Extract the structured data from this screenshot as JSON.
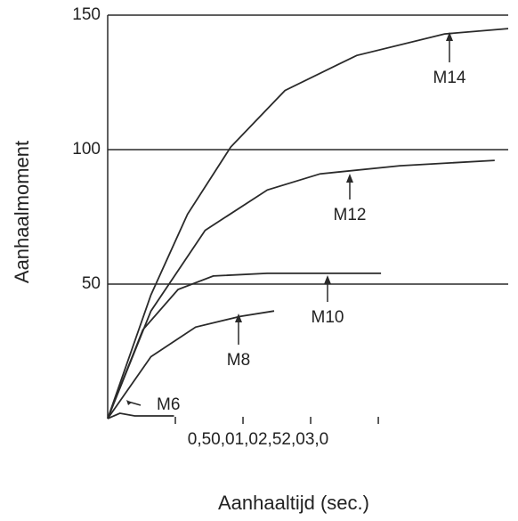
{
  "chart_data": {
    "type": "line",
    "x_label": "Aanhaaltijd (sec.)",
    "y_label": "Aanhaalmoment",
    "x_tick_text": "0,50,01,02,52,03,0",
    "xlim": [
      0,
      2.96
    ],
    "xticks": [
      0.5,
      1,
      1.5,
      2
    ],
    "ylim": [
      0,
      150
    ],
    "yticks": [
      50,
      100,
      150
    ],
    "grid": true,
    "color": "#2a2a2a",
    "series": [
      {
        "name": "M14",
        "x": [
          0,
          0.32,
          0.59,
          0.91,
          1.31,
          1.84,
          2.49,
          2.96
        ],
        "values": [
          0,
          46,
          76,
          101,
          122,
          135,
          143,
          145
        ]
      },
      {
        "name": "M12",
        "x": [
          0,
          0.32,
          0.72,
          1.18,
          1.57,
          2.16,
          2.86
        ],
        "values": [
          0,
          40,
          70,
          85,
          91,
          94,
          96
        ]
      },
      {
        "name": "M10",
        "x": [
          0,
          0.26,
          0.52,
          0.78,
          1.18,
          2.02
        ],
        "values": [
          0,
          33,
          48,
          53,
          54,
          54
        ]
      },
      {
        "name": "M8",
        "x": [
          0,
          0.32,
          0.65,
          0.98,
          1.23
        ],
        "values": [
          0,
          23,
          34,
          38,
          40
        ]
      },
      {
        "name": "M6",
        "x": [
          0,
          0.09,
          0.2,
          0.49
        ],
        "values": [
          0,
          2,
          1,
          1
        ]
      }
    ]
  }
}
